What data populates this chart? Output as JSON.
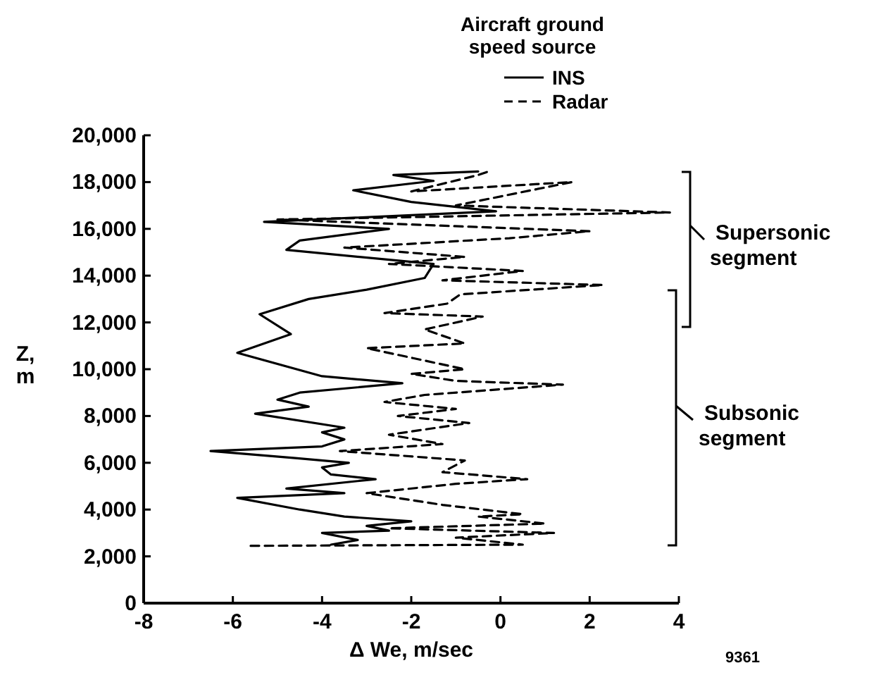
{
  "chart_data": {
    "type": "line",
    "xlabel": "Δ We, m/sec",
    "ylabel": "Z, m",
    "legend_title": "Aircraft ground speed source",
    "legend": "top right",
    "marker": "none",
    "grid": false,
    "xlim": [
      -8,
      4
    ],
    "xticks": [
      -8,
      -6,
      -4,
      -2,
      0,
      2,
      4
    ],
    "ylim": [
      0,
      20000
    ],
    "yticks": [
      0,
      {
        "value": 2000,
        "label": "2,000"
      },
      {
        "value": 4000,
        "label": "4,000"
      },
      {
        "value": 6000,
        "label": "6,000"
      },
      {
        "value": 8000,
        "label": "8,000"
      },
      {
        "value": 10000,
        "label": "10,000"
      },
      {
        "value": 12000,
        "label": "12,000"
      },
      {
        "value": 14000,
        "label": "14,000"
      },
      {
        "value": 16000,
        "label": "16,000"
      },
      {
        "value": 18000,
        "label": "18,000"
      },
      {
        "value": 20000,
        "label": "20,000"
      }
    ],
    "series": [
      {
        "name": "INS",
        "color": "#000000",
        "line_style": "solid",
        "x": [
          -3.8,
          -3.2,
          -4.0,
          -2.5,
          -3.0,
          -2.0,
          -3.5,
          -4.5,
          -5.9,
          -3.5,
          -4.8,
          -2.8,
          -3.8,
          -4.0,
          -3.4,
          -4.6,
          -6.5,
          -4.0,
          -3.5,
          -4.0,
          -3.5,
          -5.5,
          -4.3,
          -5.0,
          -4.5,
          -2.2,
          -4.0,
          -5.9,
          -4.7,
          -5.4,
          -4.3,
          -3.0,
          -1.7,
          -1.5,
          -4.8,
          -4.5,
          -2.5,
          -5.3,
          -0.1,
          -2.0,
          -3.3,
          -1.5,
          -2.4,
          -0.5
        ],
        "values": [
          2500,
          2700,
          3000,
          3100,
          3300,
          3500,
          3700,
          4000,
          4500,
          4700,
          4900,
          5300,
          5500,
          5800,
          6000,
          6200,
          6500,
          6700,
          7000,
          7300,
          7500,
          8100,
          8400,
          8700,
          9000,
          9400,
          9700,
          10700,
          11500,
          12350,
          13000,
          13400,
          13900,
          14500,
          15100,
          15500,
          16000,
          16300,
          16750,
          17150,
          17650,
          18050,
          18300,
          18450
        ]
      },
      {
        "name": "Radar",
        "color": "#000000",
        "line_style": "dashed",
        "x": [
          -5.6,
          0.5,
          -1.0,
          1.2,
          -2.5,
          1.0,
          -0.5,
          0.5,
          -1.3,
          -3.0,
          -1.0,
          0.6,
          -1.3,
          -0.8,
          -3.6,
          -1.3,
          -2.5,
          -0.7,
          -2.3,
          -1.0,
          -2.6,
          -1.7,
          1.4,
          -1.0,
          -2.0,
          -0.8,
          -3.0,
          -0.8,
          -1.7,
          -0.4,
          -2.6,
          -1.2,
          -0.9,
          2.3,
          -1.3,
          0.5,
          -2.5,
          -0.8,
          -3.5,
          0.2,
          2.0,
          -5.0,
          3.8,
          -1.0,
          1.6,
          -2.0,
          -0.5,
          -0.2
        ],
        "values": [
          2450,
          2500,
          2800,
          3000,
          3200,
          3400,
          3700,
          3800,
          4200,
          4700,
          5100,
          5300,
          5600,
          6100,
          6500,
          6800,
          7200,
          7700,
          8000,
          8300,
          8600,
          8900,
          9340,
          9500,
          9800,
          10000,
          10900,
          11100,
          11700,
          12250,
          12400,
          12800,
          13200,
          13600,
          13800,
          14200,
          14500,
          14800,
          15200,
          15600,
          15900,
          16400,
          16700,
          17000,
          18000,
          17600,
          18300,
          18500
        ]
      }
    ],
    "annotations": [
      "Supersonic segment",
      "Subsonic segment",
      "9361"
    ]
  }
}
